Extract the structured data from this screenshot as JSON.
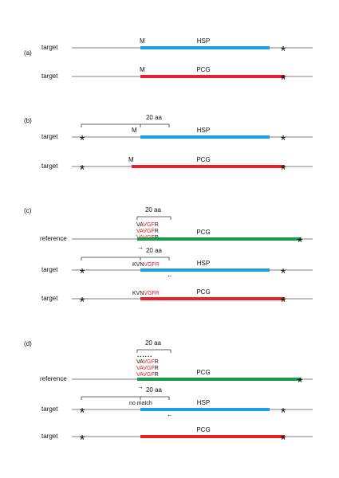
{
  "panels": [
    {
      "label": "(a)",
      "rows": [
        {
          "label": "target",
          "start": "M",
          "gene": "HSP",
          "stop": "*",
          "color": "#1ba1e2"
        },
        {
          "label": "target",
          "start": "M",
          "gene": "PCG",
          "stop": "*",
          "color": "#e8202a"
        }
      ]
    },
    {
      "label": "(b)",
      "scale": "20 aa",
      "rows": [
        {
          "label": "target",
          "upstream_stop": "*",
          "start": "M",
          "gene": "HSP",
          "stop": "*",
          "color": "#1ba1e2"
        },
        {
          "label": "target",
          "upstream_stop": "*",
          "start": "M",
          "gene": "PCG",
          "stop": "*",
          "color": "#e8202a"
        }
      ]
    },
    {
      "label": "(c)",
      "reference_scale": "20 aa",
      "target_scale": "20 aa",
      "reference_sequences": [
        [
          {
            "text": "VA",
            "color": "#111"
          },
          {
            "text": "VGF",
            "color": "#e8202a"
          },
          {
            "text": "R",
            "color": "#111"
          }
        ],
        [
          {
            "text": "VA",
            "color": "#e8202a"
          },
          {
            "text": "VGF",
            "color": "#e8202a"
          },
          {
            "text": "R",
            "color": "#111"
          }
        ],
        [
          {
            "text": "VA",
            "color": "#e8202a"
          },
          {
            "text": "VGF",
            "color": "#e8202a"
          },
          {
            "text": "R",
            "color": "#111"
          }
        ]
      ],
      "rows": [
        {
          "label": "reference",
          "gene": "PCG",
          "stop": "*",
          "arrow": "→",
          "color": "#1a9a48"
        },
        {
          "label": "target",
          "upstream_stop": "*",
          "motif": [
            {
              "text": "KVN",
              "color": "#111"
            },
            {
              "text": "VGFR",
              "color": "#e8202a"
            }
          ],
          "gene": "HSP",
          "stop": "*",
          "arrow": "←",
          "color": "#1ba1e2"
        },
        {
          "label": "target",
          "upstream_stop": "*",
          "motif": [
            {
              "text": "KVN",
              "color": "#111"
            },
            {
              "text": "VGFR",
              "color": "#e8202a"
            }
          ],
          "gene": "PCG",
          "stop": "*",
          "color": "#e8202a"
        }
      ]
    },
    {
      "label": "(d)",
      "reference_scale": "20 aa",
      "target_scale": "20 aa",
      "dots": "......",
      "reference_sequences": [
        [
          {
            "text": "VA",
            "color": "#111"
          },
          {
            "text": "VGF",
            "color": "#e8202a"
          },
          {
            "text": "R",
            "color": "#111"
          }
        ],
        [
          {
            "text": "VA",
            "color": "#e8202a"
          },
          {
            "text": "VGF",
            "color": "#e8202a"
          },
          {
            "text": "R",
            "color": "#111"
          }
        ],
        [
          {
            "text": "VA",
            "color": "#e8202a"
          },
          {
            "text": "VGF",
            "color": "#e8202a"
          },
          {
            "text": "R",
            "color": "#111"
          }
        ]
      ],
      "rows": [
        {
          "label": "reference",
          "gene": "PCG",
          "stop": "*",
          "arrow": "→",
          "color": "#1a9a48"
        },
        {
          "label": "target",
          "upstream_stop": "*",
          "note": "no match",
          "gene": "HSP",
          "stop": "*",
          "arrow": "←",
          "color": "#1ba1e2"
        },
        {
          "label": "target",
          "upstream_stop": "*",
          "gene": "PCG",
          "stop": "*",
          "color": "#e8202a"
        }
      ]
    }
  ]
}
